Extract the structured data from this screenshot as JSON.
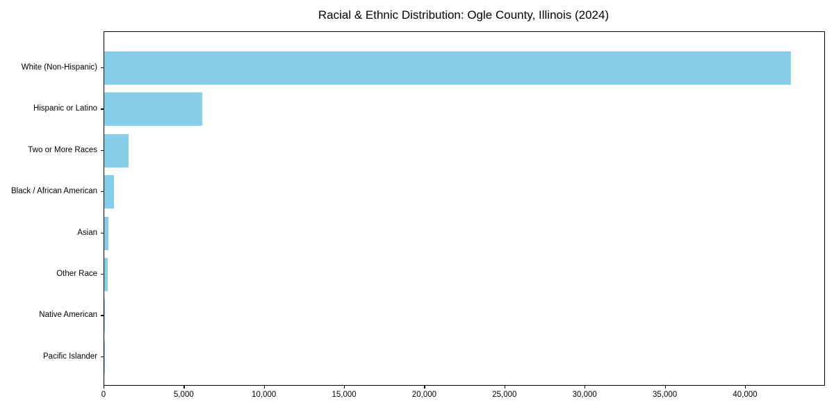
{
  "chart_data": {
    "type": "bar",
    "orientation": "horizontal",
    "title": "Racial & Ethnic Distribution: Ogle County, Illinois (2024)",
    "xlabel": "",
    "ylabel": "",
    "categories": [
      "White (Non-Hispanic)",
      "Hispanic or Latino",
      "Two or More Races",
      "Black / African American",
      "Asian",
      "Other Race",
      "Native American",
      "Pacific Islander"
    ],
    "values": [
      42800,
      6100,
      1500,
      620,
      270,
      210,
      40,
      10
    ],
    "xlim": [
      0,
      44900
    ],
    "x_ticks": [
      {
        "value": 0,
        "label": "0"
      },
      {
        "value": 5000,
        "label": "5,000"
      },
      {
        "value": 10000,
        "label": "10,000"
      },
      {
        "value": 15000,
        "label": "15,000"
      },
      {
        "value": 20000,
        "label": "20,000"
      },
      {
        "value": 25000,
        "label": "25,000"
      },
      {
        "value": 30000,
        "label": "30,000"
      },
      {
        "value": 35000,
        "label": "35,000"
      },
      {
        "value": 40000,
        "label": "40,000"
      }
    ],
    "bar_color": "#87CEEB",
    "grid": false,
    "legend": null
  }
}
